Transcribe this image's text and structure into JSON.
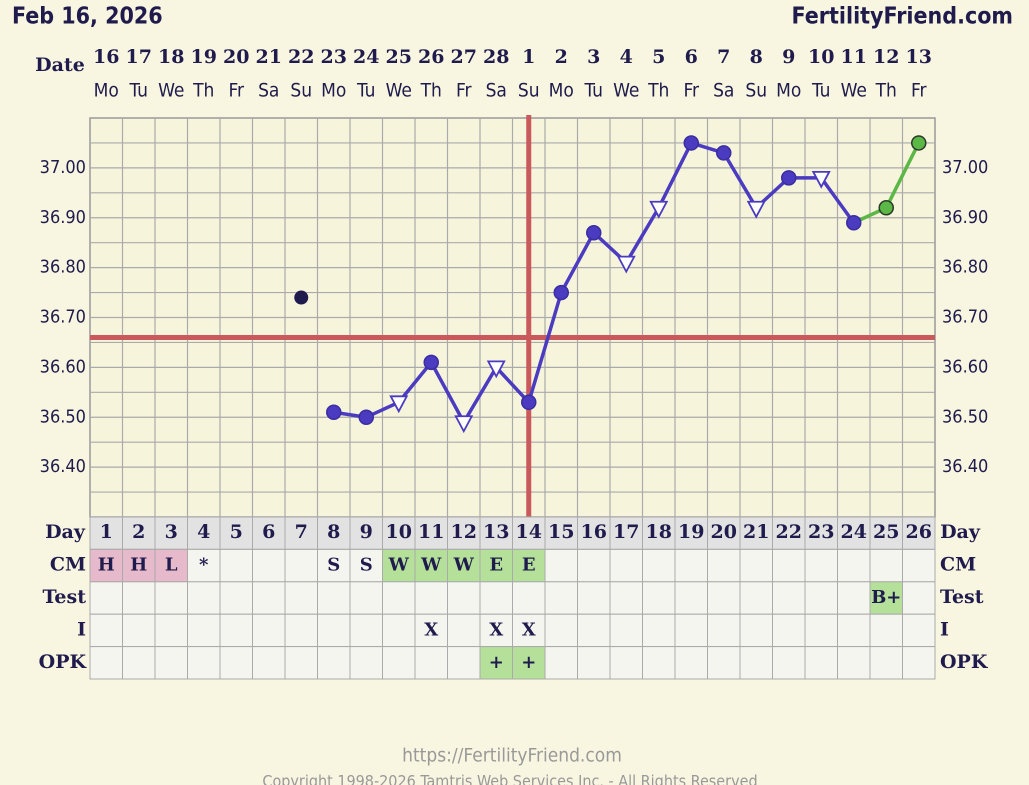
{
  "header": {
    "date": "Feb 16, 2026",
    "brand": "FertilityFriend.com"
  },
  "chart_data": {
    "type": "line",
    "date_label": "Date",
    "categories": [
      "16",
      "17",
      "18",
      "19",
      "20",
      "21",
      "22",
      "23",
      "24",
      "25",
      "26",
      "27",
      "28",
      "1",
      "2",
      "3",
      "4",
      "5",
      "6",
      "7",
      "8",
      "9",
      "10",
      "11",
      "12",
      "13"
    ],
    "weekdays": [
      "Mo",
      "Tu",
      "We",
      "Th",
      "Fr",
      "Sa",
      "Su",
      "Mo",
      "Tu",
      "We",
      "Th",
      "Fr",
      "Sa",
      "Su",
      "Mo",
      "Tu",
      "We",
      "Th",
      "Fr",
      "Sa",
      "Su",
      "Mo",
      "Tu",
      "We",
      "Th",
      "Fr"
    ],
    "values": [
      null,
      null,
      null,
      null,
      null,
      null,
      null,
      36.51,
      36.5,
      36.53,
      36.61,
      36.49,
      36.6,
      36.53,
      36.75,
      36.87,
      36.81,
      36.92,
      37.05,
      37.03,
      36.92,
      36.98,
      36.98,
      36.89,
      36.92,
      37.05
    ],
    "markers": [
      null,
      null,
      null,
      null,
      null,
      null,
      null,
      "circle",
      "circle",
      "triangle",
      "circle",
      "triangle",
      "triangle",
      "circle",
      "circle",
      "circle",
      "triangle",
      "triangle",
      "circle",
      "circle",
      "triangle",
      "circle",
      "triangle",
      "circle",
      "circle",
      "circle"
    ],
    "marker_colors": [
      null,
      null,
      null,
      null,
      null,
      null,
      null,
      "#4a3bc0",
      "#4a3bc0",
      "#4a3bc0",
      "#4a3bc0",
      "#4a3bc0",
      "#4a3bc0",
      "#4a3bc0",
      "#4a3bc0",
      "#4a3bc0",
      "#4a3bc0",
      "#4a3bc0",
      "#4a3bc0",
      "#4a3bc0",
      "#4a3bc0",
      "#4a3bc0",
      "#4a3bc0",
      "#4a3bc0",
      "#5cb846",
      "#5cb846"
    ],
    "discarded_values": [
      null,
      null,
      null,
      null,
      null,
      null,
      36.74,
      null,
      null,
      null,
      null,
      null,
      null,
      null,
      null,
      null,
      null,
      null,
      null,
      null,
      null,
      null,
      null,
      null,
      null,
      null
    ],
    "discarded_color": "#1f1b4d",
    "coverline": 36.66,
    "ovulation_day": 14,
    "reference_color": "#c9595a",
    "ylim": [
      36.3,
      37.1
    ],
    "yticks": [
      {
        "value": 36.4,
        "label": "36.40"
      },
      {
        "value": 36.5,
        "label": "36.50"
      },
      {
        "value": 36.6,
        "label": "36.60"
      },
      {
        "value": 36.7,
        "label": "36.70"
      },
      {
        "value": 36.8,
        "label": "36.80"
      },
      {
        "value": 36.9,
        "label": "36.90"
      },
      {
        "value": 37.0,
        "label": "37.00"
      }
    ],
    "minor_yticks": [
      36.35,
      36.4,
      36.45,
      36.5,
      36.55,
      36.6,
      36.65,
      36.7,
      36.75,
      36.8,
      36.85,
      36.9,
      36.95,
      37.0,
      37.05
    ],
    "grid": true,
    "day_label": "Day",
    "days": [
      1,
      2,
      3,
      4,
      5,
      6,
      7,
      8,
      9,
      10,
      11,
      12,
      13,
      14,
      15,
      16,
      17,
      18,
      19,
      20,
      21,
      22,
      23,
      24,
      25,
      26
    ],
    "rows": [
      {
        "label": "CM",
        "cells": [
          "H",
          "H",
          "L",
          "*",
          null,
          null,
          null,
          "S",
          "S",
          "W",
          "W",
          "W",
          "E",
          "E",
          null,
          null,
          null,
          null,
          null,
          null,
          null,
          null,
          null,
          null,
          null,
          null
        ],
        "fills": [
          "#e6b9cb",
          "#e6b9cb",
          "#e6b9cb",
          null,
          null,
          null,
          null,
          null,
          null,
          "#b5e09a",
          "#b5e09a",
          "#b5e09a",
          "#b5e09a",
          "#b5e09a",
          null,
          null,
          null,
          null,
          null,
          null,
          null,
          null,
          null,
          null,
          null,
          null
        ]
      },
      {
        "label": "Test",
        "cells": [
          null,
          null,
          null,
          null,
          null,
          null,
          null,
          null,
          null,
          null,
          null,
          null,
          null,
          null,
          null,
          null,
          null,
          null,
          null,
          null,
          null,
          null,
          null,
          null,
          "B+",
          null
        ],
        "fills": [
          null,
          null,
          null,
          null,
          null,
          null,
          null,
          null,
          null,
          null,
          null,
          null,
          null,
          null,
          null,
          null,
          null,
          null,
          null,
          null,
          null,
          null,
          null,
          null,
          "#b5e09a",
          null
        ]
      },
      {
        "label": "I",
        "cells": [
          null,
          null,
          null,
          null,
          null,
          null,
          null,
          null,
          null,
          null,
          "X",
          null,
          "X",
          "X",
          null,
          null,
          null,
          null,
          null,
          null,
          null,
          null,
          null,
          null,
          null,
          null
        ],
        "fills": [
          null,
          null,
          null,
          null,
          null,
          null,
          null,
          null,
          null,
          null,
          null,
          null,
          null,
          null,
          null,
          null,
          null,
          null,
          null,
          null,
          null,
          null,
          null,
          null,
          null,
          null
        ]
      },
      {
        "label": "OPK",
        "cells": [
          null,
          null,
          null,
          null,
          null,
          null,
          null,
          null,
          null,
          null,
          null,
          null,
          "+",
          "+",
          null,
          null,
          null,
          null,
          null,
          null,
          null,
          null,
          null,
          null,
          null,
          null
        ],
        "fills": [
          null,
          null,
          null,
          null,
          null,
          null,
          null,
          null,
          null,
          null,
          null,
          null,
          "#b5e09a",
          "#b5e09a",
          null,
          null,
          null,
          null,
          null,
          null,
          null,
          null,
          null,
          null,
          null,
          null
        ]
      }
    ]
  },
  "footer": {
    "url": "https://FertilityFriend.com",
    "copyright": "Copyright 1998-2026 Tamtris Web Services Inc. - All Rights Reserved"
  }
}
